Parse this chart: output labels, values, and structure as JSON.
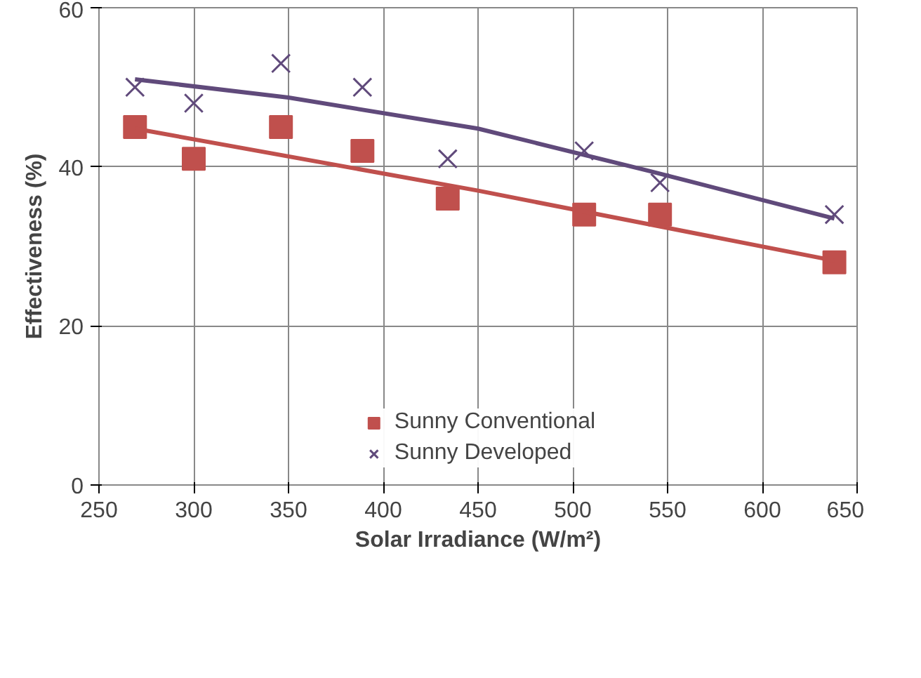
{
  "chart_data": {
    "type": "scatter",
    "xlabel": "Solar Irradiance (W/m²)",
    "ylabel": "Effectiveness (%)",
    "xlim": [
      250,
      650
    ],
    "xticks": [
      250,
      300,
      350,
      400,
      450,
      500,
      550,
      600,
      650
    ],
    "ylim": [
      0,
      60
    ],
    "yticks": [
      0,
      20,
      40,
      60
    ],
    "grid": true,
    "legend": "bottom",
    "series": [
      {
        "name": "Sunny Conventional",
        "color": "#c0504d",
        "marker": "square",
        "x": [
          269,
          300,
          346,
          389,
          434,
          506,
          546,
          638
        ],
        "values": [
          45,
          41,
          45,
          42,
          36,
          34,
          34,
          28
        ]
      },
      {
        "name": "Sunny Developed",
        "color": "#604a7b",
        "marker": "cross",
        "x": [
          269,
          300,
          346,
          389,
          434,
          506,
          546,
          638
        ],
        "values": [
          50,
          48,
          53,
          50,
          41,
          42,
          38,
          34
        ]
      },
      {
        "type": "line",
        "color": "#c0504d",
        "marker": "none",
        "x": [
          269,
          450,
          638
        ],
        "values": [
          44.8,
          37.0,
          28.2
        ]
      },
      {
        "type": "line",
        "color": "#604a7b",
        "marker": "none",
        "x": [
          269,
          350,
          450,
          540,
          638
        ],
        "values": [
          51,
          48.7,
          44.8,
          39.5,
          33.5
        ]
      }
    ]
  }
}
